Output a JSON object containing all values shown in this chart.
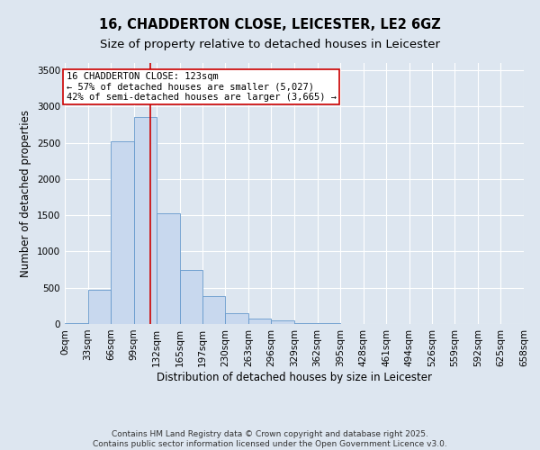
{
  "title": "16, CHADDERTON CLOSE, LEICESTER, LE2 6GZ",
  "subtitle": "Size of property relative to detached houses in Leicester",
  "xlabel": "Distribution of detached houses by size in Leicester",
  "ylabel": "Number of detached properties",
  "bar_color": "#c8d8ee",
  "bar_edge_color": "#6699cc",
  "background_color": "#dde6f0",
  "grid_color": "#ffffff",
  "bin_edges": [
    0,
    33,
    66,
    99,
    132,
    165,
    197,
    230,
    263,
    296,
    329,
    362,
    395,
    428,
    461,
    494,
    526,
    559,
    592,
    625,
    658
  ],
  "bar_heights": [
    10,
    470,
    2520,
    2850,
    1530,
    750,
    390,
    145,
    75,
    55,
    10,
    10,
    5,
    2,
    1,
    0,
    0,
    0,
    0,
    0
  ],
  "vline_x": 123,
  "vline_color": "#cc0000",
  "annotation_line1": "16 CHADDERTON CLOSE: 123sqm",
  "annotation_line2": "← 57% of detached houses are smaller (5,027)",
  "annotation_line3": "42% of semi-detached houses are larger (3,665) →",
  "annotation_box_color": "#ffffff",
  "annotation_box_edge_color": "#cc0000",
  "ylim": [
    0,
    3600
  ],
  "yticks": [
    0,
    500,
    1000,
    1500,
    2000,
    2500,
    3000,
    3500
  ],
  "tick_labels": [
    "0sqm",
    "33sqm",
    "66sqm",
    "99sqm",
    "132sqm",
    "165sqm",
    "197sqm",
    "230sqm",
    "263sqm",
    "296sqm",
    "329sqm",
    "362sqm",
    "395sqm",
    "428sqm",
    "461sqm",
    "494sqm",
    "526sqm",
    "559sqm",
    "592sqm",
    "625sqm",
    "658sqm"
  ],
  "footer_text": "Contains HM Land Registry data © Crown copyright and database right 2025.\nContains public sector information licensed under the Open Government Licence v3.0.",
  "title_fontsize": 10.5,
  "subtitle_fontsize": 9.5,
  "axis_label_fontsize": 8.5,
  "tick_fontsize": 7.5,
  "annotation_fontsize": 7.5,
  "footer_fontsize": 6.5
}
